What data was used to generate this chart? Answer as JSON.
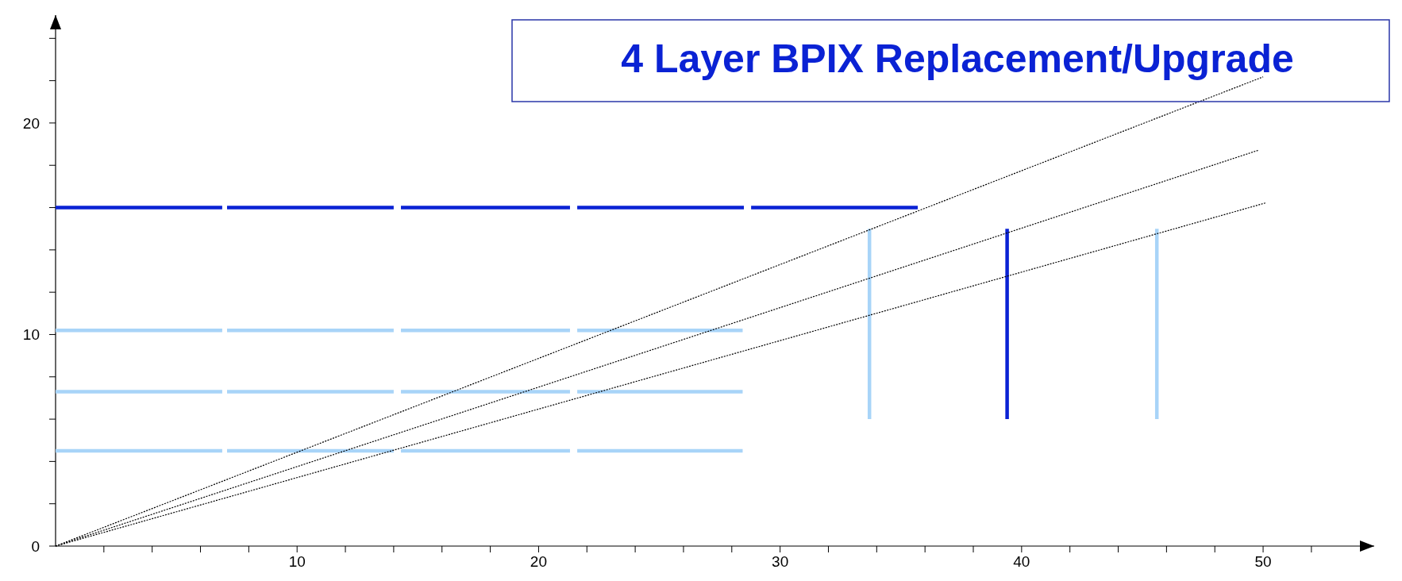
{
  "chart_data": {
    "type": "line",
    "title": "4 Layer BPIX Replacement/Upgrade",
    "xlim": [
      0,
      54.6
    ],
    "ylim": [
      0,
      25.1
    ],
    "xticks": [
      {
        "value": 2,
        "label": null
      },
      {
        "value": 4,
        "label": null
      },
      {
        "value": 6,
        "label": null
      },
      {
        "value": 8,
        "label": null
      },
      10,
      {
        "value": 12,
        "label": null
      },
      {
        "value": 14,
        "label": null
      },
      {
        "value": 16,
        "label": null
      },
      {
        "value": 18,
        "label": null
      },
      20,
      {
        "value": 22,
        "label": null
      },
      {
        "value": 24,
        "label": null
      },
      {
        "value": 26,
        "label": null
      },
      {
        "value": 28,
        "label": null
      },
      30,
      {
        "value": 32,
        "label": null
      },
      {
        "value": 34,
        "label": null
      },
      {
        "value": 36,
        "label": null
      },
      {
        "value": 38,
        "label": null
      },
      40,
      {
        "value": 42,
        "label": null
      },
      {
        "value": 44,
        "label": null
      },
      {
        "value": 46,
        "label": null
      },
      {
        "value": 48,
        "label": null
      },
      50,
      {
        "value": 52,
        "label": null
      }
    ],
    "yticks": [
      0,
      {
        "value": 2,
        "label": null
      },
      {
        "value": 4,
        "label": null
      },
      {
        "value": 6,
        "label": null
      },
      {
        "value": 8,
        "label": null
      },
      10,
      {
        "value": 12,
        "label": null
      },
      {
        "value": 14,
        "label": null
      },
      {
        "value": 16,
        "label": null
      },
      {
        "value": 18,
        "label": null
      },
      20,
      {
        "value": 22,
        "label": null
      },
      {
        "value": 24,
        "label": null
      }
    ],
    "grid": false,
    "marker": "none",
    "series": [
      {
        "color": "#0a22d4",
        "line_style": "solid",
        "x": [
          0,
          6.9,
          7.0,
          7.1,
          14.0,
          14.2,
          14.3,
          21.3,
          21.45,
          21.6,
          28.5,
          28.65,
          28.8,
          35.7
        ],
        "values": [
          16,
          16,
          null,
          16,
          16,
          null,
          16,
          16,
          null,
          16,
          16,
          null,
          16,
          16
        ]
      },
      {
        "color": "#a8d4f8",
        "line_style": "solid",
        "x": [
          0,
          6.9,
          7.0,
          7.1,
          14.0,
          14.2,
          14.3,
          21.3,
          21.45,
          21.6,
          28.45
        ],
        "values": [
          10.2,
          10.2,
          null,
          10.2,
          10.2,
          null,
          10.2,
          10.2,
          null,
          10.2,
          10.2
        ]
      },
      {
        "color": "#a8d4f8",
        "line_style": "solid",
        "x": [
          0,
          6.9,
          7.0,
          7.1,
          14.0,
          14.2,
          14.3,
          21.3,
          21.45,
          21.6,
          28.45
        ],
        "values": [
          7.3,
          7.3,
          null,
          7.3,
          7.3,
          null,
          7.3,
          7.3,
          null,
          7.3,
          7.3
        ]
      },
      {
        "color": "#a8d4f8",
        "line_style": "solid",
        "x": [
          0,
          6.9,
          7.0,
          7.1,
          14.0,
          14.2,
          14.3,
          21.3,
          21.45,
          21.6,
          28.45
        ],
        "values": [
          4.5,
          4.5,
          null,
          4.5,
          4.5,
          null,
          4.5,
          4.5,
          null,
          4.5,
          4.5
        ]
      },
      {
        "color": "#a8d4f8",
        "line_style": "solid",
        "x": [
          33.7,
          33.7
        ],
        "values": [
          6,
          15
        ]
      },
      {
        "color": "#0a22d4",
        "line_style": "solid",
        "x": [
          39.4,
          39.4
        ],
        "values": [
          6,
          15
        ]
      },
      {
        "color": "#a8d4f8",
        "line_style": "solid",
        "x": [
          45.6,
          45.6
        ],
        "values": [
          6,
          15
        ]
      },
      {
        "color": "#000000",
        "line_style": "dotted",
        "x": [
          0,
          50
        ],
        "values": [
          0,
          22.18
        ]
      },
      {
        "color": "#000000",
        "line_style": "dotted",
        "x": [
          0,
          49.8
        ],
        "values": [
          0,
          18.71
        ]
      },
      {
        "color": "#000000",
        "line_style": "dotted",
        "x": [
          0,
          50.1
        ],
        "values": [
          0,
          16.22
        ]
      }
    ]
  }
}
